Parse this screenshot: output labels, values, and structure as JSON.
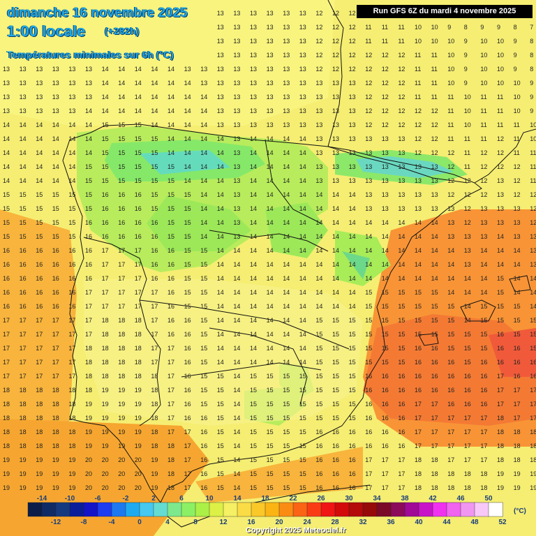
{
  "header": {
    "date": "dimanche 16 novembre 2025",
    "time": "1:00 locale",
    "offset": "(+282h)",
    "parameter": "Températures minimales sur 6h (°C)"
  },
  "run_info": "Run GFS 6Z du mardi 4 novembre 2025",
  "legend": {
    "unit": "(°C)",
    "values": [
      -14,
      -12,
      -10,
      -8,
      -6,
      -4,
      -2,
      0,
      2,
      4,
      6,
      8,
      10,
      12,
      14,
      16,
      18,
      20,
      22,
      24,
      26,
      28,
      30,
      32,
      34,
      36,
      38,
      40,
      42,
      44,
      46,
      48,
      50,
      52
    ],
    "colors": [
      "#0d1d4a",
      "#102a66",
      "#14397f",
      "#0a1e9a",
      "#1414c8",
      "#1e3cf0",
      "#1e78f0",
      "#1eaaf0",
      "#46c8f0",
      "#64dcd2",
      "#7ee88c",
      "#8cf064",
      "#aaf046",
      "#dcf046",
      "#f5f064",
      "#fadc46",
      "#fac828",
      "#fab414",
      "#fa8c14",
      "#fa6414",
      "#fa3c14",
      "#f01414",
      "#d20a0a",
      "#b40a0a",
      "#960a0a",
      "#7a0a28",
      "#8c0a5a",
      "#a00a96",
      "#c814c8",
      "#f032f0",
      "#f064f0",
      "#f096f0",
      "#f8c8f8",
      "#ffffff"
    ]
  },
  "grid": {
    "sample_row_top": "12 12 12 12 12 12 13 13 13 13 13 13 13 13 13 13 13 13 13 12 12 12 11 11 11 10 10 9 8 9 9 8 7",
    "sample_row_bottom": "19 19 19 19 19 20 20 20 20 19 18 17 16 15 14 15 15 15 15 16 16 16 17 17 17 18 18 18 18 18 19 19 19"
  },
  "copyright": "Copyright 2025 Meteociel.fr"
}
